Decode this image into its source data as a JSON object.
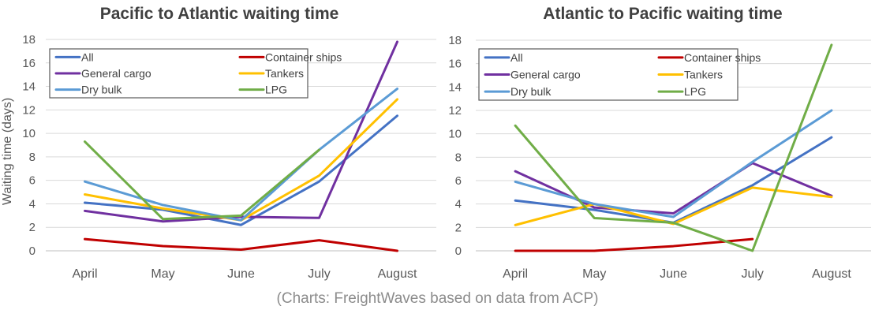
{
  "caption": "(Charts: FreightWaves based on data from ACP)",
  "chart_data": [
    {
      "type": "line",
      "title": "Pacific to Atlantic waiting time",
      "ylabel": "Waiting time (days)",
      "ylim": [
        0,
        18
      ],
      "yticks": [
        0,
        2,
        4,
        6,
        8,
        10,
        12,
        14,
        16,
        18
      ],
      "categories": [
        "April",
        "May",
        "June",
        "July",
        "August"
      ],
      "legend": "top-left, boxed, 3 rows x 2 columns",
      "grid": "horizontal",
      "series": [
        {
          "name": "All",
          "color": "#4472C4",
          "values": [
            4.1,
            3.5,
            2.2,
            5.9,
            11.5
          ]
        },
        {
          "name": "Container ships",
          "color": "#C00000",
          "values": [
            1.0,
            0.4,
            0.1,
            0.9,
            0.0
          ]
        },
        {
          "name": "General cargo",
          "color": "#7030A0",
          "values": [
            3.4,
            2.5,
            2.9,
            2.8,
            17.8
          ]
        },
        {
          "name": "Tankers",
          "color": "#FFC000",
          "values": [
            4.8,
            3.6,
            2.6,
            6.4,
            12.9
          ]
        },
        {
          "name": "Dry bulk",
          "color": "#5B9BD5",
          "values": [
            5.9,
            3.9,
            2.6,
            8.6,
            13.8
          ]
        },
        {
          "name": "LPG",
          "color": "#70AD47",
          "values": [
            9.3,
            2.7,
            3.0,
            8.6,
            null
          ]
        }
      ]
    },
    {
      "type": "line",
      "title": "Atlantic to Pacific waiting time",
      "ylabel": "",
      "ylim": [
        0,
        18
      ],
      "yticks": [
        0,
        2,
        4,
        6,
        8,
        10,
        12,
        14,
        16,
        18
      ],
      "categories": [
        "April",
        "May",
        "June",
        "July",
        "August"
      ],
      "legend": "top-left, boxed, 3 rows x 2 columns",
      "grid": "horizontal",
      "series": [
        {
          "name": "All",
          "color": "#4472C4",
          "values": [
            4.3,
            3.5,
            2.4,
            5.6,
            9.7
          ]
        },
        {
          "name": "Container ships",
          "color": "#C00000",
          "values": [
            0.0,
            0.0,
            0.4,
            1.0,
            null
          ]
        },
        {
          "name": "General cargo",
          "color": "#7030A0",
          "values": [
            6.8,
            3.7,
            3.2,
            7.5,
            4.7
          ]
        },
        {
          "name": "Tankers",
          "color": "#FFC000",
          "values": [
            2.2,
            4.0,
            2.3,
            5.4,
            4.6
          ]
        },
        {
          "name": "Dry bulk",
          "color": "#5B9BD5",
          "values": [
            5.9,
            4.0,
            2.9,
            7.6,
            12.0
          ]
        },
        {
          "name": "LPG",
          "color": "#70AD47",
          "values": [
            10.7,
            2.8,
            2.4,
            0.0,
            17.6
          ]
        }
      ]
    }
  ]
}
